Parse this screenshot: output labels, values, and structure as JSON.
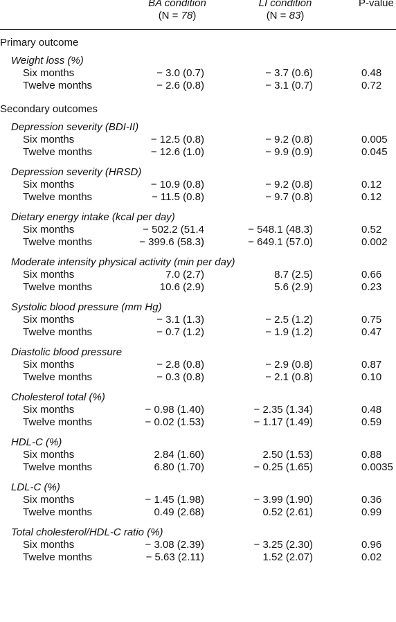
{
  "header": {
    "ba_title": "BA condition",
    "ba_n_prefix": "(N = ",
    "ba_n_value": "78",
    "ba_n_suffix": ")",
    "li_title": "LI condition",
    "li_n_prefix": "(N = ",
    "li_n_value": "83",
    "li_n_suffix": ")",
    "pvalue_title": "P-value"
  },
  "sections": [
    {
      "title": "Primary outcome",
      "groups": [
        {
          "title": "Weight loss (%)",
          "rows": [
            {
              "label": "Six months",
              "ba": "− 3.0 (0.7)",
              "li": "− 3.7 (0.6)",
              "p": "0.48"
            },
            {
              "label": "Twelve months",
              "ba": "− 2.6 (0.8)",
              "li": "− 3.1 (0.7)",
              "p": "0.72"
            }
          ]
        }
      ]
    },
    {
      "title": "Secondary outcomes",
      "groups": [
        {
          "title": "Depression severity (BDI-II)",
          "rows": [
            {
              "label": "Six months",
              "ba": "− 12.5 (0.8)",
              "li": "− 9.2 (0.8)",
              "p": "0.005"
            },
            {
              "label": "Twelve months",
              "ba": "− 12.6 (1.0)",
              "li": "− 9.9 (0.9)",
              "p": "0.045"
            }
          ]
        },
        {
          "title": "Depression severity (HRSD)",
          "rows": [
            {
              "label": "Six months",
              "ba": "− 10.9 (0.8)",
              "li": "− 9.2 (0.8)",
              "p": "0.12"
            },
            {
              "label": "Twelve months",
              "ba": "− 11.5 (0.8)",
              "li": "− 9.7 (0.8)",
              "p": "0.12"
            }
          ]
        },
        {
          "title": "Dietary energy intake (kcal per day)",
          "rows": [
            {
              "label": "Six months",
              "ba": "− 502.2 (51.4 )",
              "li": "− 548.1 (48.3)",
              "p": "0.52"
            },
            {
              "label": "Twelve months",
              "ba": "− 399.6 (58.3)",
              "li": "− 649.1 (57.0)",
              "p": "0.002"
            }
          ]
        },
        {
          "title": "Moderate intensity physical activity (min per day)",
          "rows": [
            {
              "label": "Six months",
              "ba": "7.0 (2.7)",
              "li": "8.7 (2.5)",
              "p": "0.66"
            },
            {
              "label": "Twelve months",
              "ba": "10.6 (2.9)",
              "li": "5.6 (2.9)",
              "p": "0.23"
            }
          ]
        },
        {
          "title": "Systolic blood pressure (mm Hg)",
          "rows": [
            {
              "label": "Six months",
              "ba": "− 3.1 (1.3)",
              "li": "− 2.5 (1.2)",
              "p": "0.75"
            },
            {
              "label": "Twelve months",
              "ba": "− 0.7 (1.2)",
              "li": "− 1.9 (1.2)",
              "p": "0.47"
            }
          ]
        },
        {
          "title": "Diastolic blood pressure",
          "rows": [
            {
              "label": "Six months",
              "ba": "− 2.8 (0.8)",
              "li": "− 2.9 (0.8)",
              "p": "0.87"
            },
            {
              "label": "Twelve months",
              "ba": "− 0.3 (0.8)",
              "li": "− 2.1 (0.8)",
              "p": "0.10"
            }
          ]
        },
        {
          "title": "Cholesterol total (%)",
          "rows": [
            {
              "label": "Six months",
              "ba": "− 0.98 (1.40)",
              "li": "− 2.35 (1.34)",
              "p": "0.48"
            },
            {
              "label": "Twelve months",
              "ba": "− 0.02 (1.53)",
              "li": "− 1.17 (1.49)",
              "p": "0.59"
            }
          ]
        },
        {
          "title": "HDL-C (%)",
          "rows": [
            {
              "label": "Six months",
              "ba": "2.84 (1.60)",
              "li": "2.50 (1.53)",
              "p": "0.88"
            },
            {
              "label": "Twelve months",
              "ba": "6.80 (1.70)",
              "li": "− 0.25 (1.65)",
              "p": "0.0035"
            }
          ]
        },
        {
          "title": "LDL-C (%)",
          "rows": [
            {
              "label": "Six months",
              "ba": "− 1.45 (1.98)",
              "li": "− 3.99 (1.90)",
              "p": "0.36"
            },
            {
              "label": "Twelve months",
              "ba": "0.49 (2.68)",
              "li": "0.52 (2.61)",
              "p": "0.99"
            }
          ]
        },
        {
          "title": "Total cholesterol/HDL-C ratio (%)",
          "rows": [
            {
              "label": "Six months",
              "ba": "− 3.08 (2.39)",
              "li": "− 3.25 (2.30)",
              "p": "0.96"
            },
            {
              "label": "Twelve months",
              "ba": "− 5.63 (2.11)",
              "li": "1.52 (2.07)",
              "p": "0.02"
            }
          ]
        }
      ]
    }
  ]
}
